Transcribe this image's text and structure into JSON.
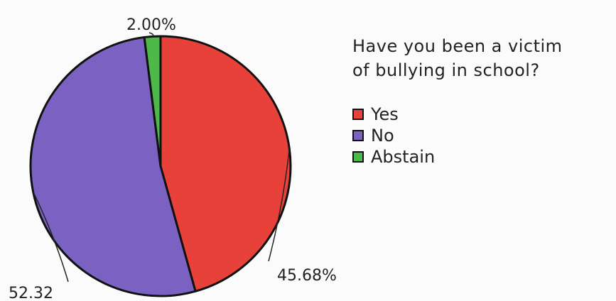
{
  "chart_data": {
    "type": "pie",
    "title_lines": [
      "Have you been a victim",
      "of bullying in school?"
    ],
    "slices": [
      {
        "name": "Yes",
        "value": 45.68,
        "label": "45.68%",
        "color": "#e8413a"
      },
      {
        "name": "No",
        "value": 52.32,
        "label": "52.32",
        "color": "#7b62c2"
      },
      {
        "name": "Abstain",
        "value": 2.0,
        "label": "2.00%",
        "color": "#4db948"
      }
    ],
    "legend_position": "right"
  }
}
